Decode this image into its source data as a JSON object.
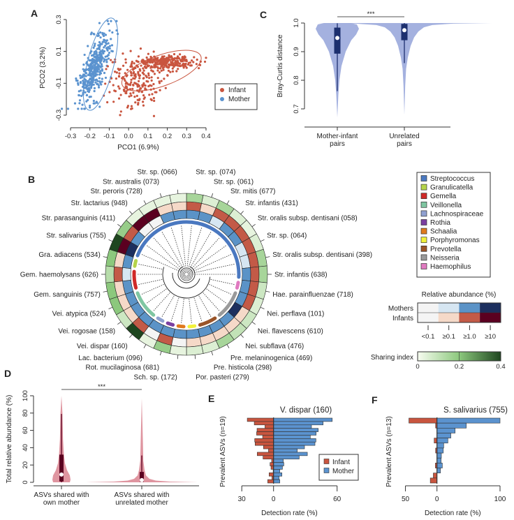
{
  "panels": {
    "A": "A",
    "B": "B",
    "C": "C",
    "D": "D",
    "E": "E",
    "F": "F"
  },
  "chart_data": [
    {
      "panel": "A",
      "type": "scatter",
      "xlabel": "PCO1 (6.9%)",
      "ylabel": "PCO2 (3.2%)",
      "xlim": [
        -0.3,
        0.4
      ],
      "ylim": [
        -0.3,
        0.3
      ],
      "xticks": [
        -0.3,
        -0.2,
        -0.1,
        0.0,
        0.1,
        0.2,
        0.3,
        0.4
      ],
      "xtick_labels": [
        "-0.3",
        "-0.2",
        "-0.1",
        "0.0",
        "0.1",
        "0.2",
        "0.3",
        "0.4"
      ],
      "yticks": [
        -0.3,
        -0.1,
        0.1,
        0.3
      ],
      "ytick_labels": [
        "-0.3",
        "-0.1",
        "0.1",
        "0.3"
      ],
      "legend_placement": "right",
      "series": [
        {
          "name": "Infant",
          "color": "#c9553f",
          "cluster_center": [
            0.17,
            -0.02
          ]
        },
        {
          "name": "Mother",
          "color": "#5b93cf",
          "cluster_center": [
            -0.15,
            0.01
          ]
        }
      ],
      "confidence_ellipses": true
    },
    {
      "panel": "B",
      "type": "heatmap",
      "layout": "circular",
      "rings": [
        "Mothers",
        "Infants",
        "Sharing index"
      ],
      "asvs": [
        {
          "label": "Str. sp. (074)",
          "genus": "Streptococcus",
          "mother": 2,
          "infant": 2,
          "sharing": 0.15
        },
        {
          "label": "Str. sp. (061)",
          "genus": "Streptococcus",
          "mother": 2,
          "infant": 1,
          "sharing": 0.05
        },
        {
          "label": "Str. mitis (677)",
          "genus": "Streptococcus",
          "mother": 1,
          "infant": 2,
          "sharing": 0.15
        },
        {
          "label": "Str. infantis (431)",
          "genus": "Streptococcus",
          "mother": 2,
          "infant": 2,
          "sharing": 0.05
        },
        {
          "label": "Str. oralis subsp. dentisani (058)",
          "genus": "Streptococcus",
          "mother": 2,
          "infant": 2,
          "sharing": 0.03
        },
        {
          "label": "Str. sp. (064)",
          "genus": "Streptococcus",
          "mother": 1,
          "infant": 2,
          "sharing": 0.05
        },
        {
          "label": "Str. oralis subsp. dentisani (398)",
          "genus": "Streptococcus",
          "mother": 1,
          "infant": 2,
          "sharing": 0.15
        },
        {
          "label": "Str. infantis (638)",
          "genus": "Streptococcus",
          "mother": 2,
          "infant": 2,
          "sharing": 0.15
        },
        {
          "label": "Hae. parainfluenzae (718)",
          "genus": "Haemophilus",
          "mother": 2,
          "infant": 2,
          "sharing": 0.08
        },
        {
          "label": "Nei. perflava (101)",
          "genus": "Neisseria",
          "mother": 2,
          "infant": 2,
          "sharing": 0.05
        },
        {
          "label": "Nei. flavescens (610)",
          "genus": "Neisseria",
          "mother": 3,
          "infant": 1,
          "sharing": 0.08
        },
        {
          "label": "Nei. subflava (476)",
          "genus": "Neisseria",
          "mother": 2,
          "infant": 1,
          "sharing": 0.1
        },
        {
          "label": "Pre. melaninogenica (469)",
          "genus": "Prevotella",
          "mother": 2,
          "infant": 1,
          "sharing": 0.15
        },
        {
          "label": "Pre. histicola (298)",
          "genus": "Prevotella",
          "mother": 2,
          "infant": 1,
          "sharing": 0.05
        },
        {
          "label": "Por. pasteri (279)",
          "genus": "Porphyromonas",
          "mother": 2,
          "infant": 1,
          "sharing": 0.05
        },
        {
          "label": "Sch. sp. (172)",
          "genus": "Schaalia",
          "mother": 2,
          "infant": 0,
          "sharing": 0.03
        },
        {
          "label": "Rot. mucilaginosa (681)",
          "genus": "Rothia",
          "mother": 2,
          "infant": 2,
          "sharing": 0.18
        },
        {
          "label": "Lac. bacterium (096)",
          "genus": "Lachnospiraceae",
          "mother": 2,
          "infant": 0,
          "sharing": 0.03
        },
        {
          "label": "Vei. dispar (160)",
          "genus": "Veillonella",
          "mother": 2,
          "infant": 2,
          "sharing": 0.4
        },
        {
          "label": "Vei. rogosae (158)",
          "genus": "Veillonella",
          "mother": 2,
          "infant": 1,
          "sharing": 0.08
        },
        {
          "label": "Vei. atypica (524)",
          "genus": "Veillonella",
          "mother": 2,
          "infant": 1,
          "sharing": 0.2
        },
        {
          "label": "Gem. sanguinis (757)",
          "genus": "Gemella",
          "mother": 2,
          "infant": 1,
          "sharing": 0.2
        },
        {
          "label": "Gem. haemolysans (626)",
          "genus": "Gemella",
          "mother": 1,
          "infant": 2,
          "sharing": 0.12
        },
        {
          "label": "Gra. adiacens (534)",
          "genus": "Granulicatella",
          "mother": 2,
          "infant": 1,
          "sharing": 0.2
        },
        {
          "label": "Str. salivarius (755)",
          "genus": "Streptococcus",
          "mother": 3,
          "infant": 3,
          "sharing": 0.4
        },
        {
          "label": "Str. parasanguinis (411)",
          "genus": "Streptococcus",
          "mother": 2,
          "infant": 2,
          "sharing": 0.18
        },
        {
          "label": "Str. lactarius (948)",
          "genus": "Streptococcus",
          "mother": 0,
          "infant": 3,
          "sharing": 0.03
        },
        {
          "label": "Str. peroris (728)",
          "genus": "Streptococcus",
          "mother": 0,
          "infant": 3,
          "sharing": 0.03
        },
        {
          "label": "Str. australis (073)",
          "genus": "Streptococcus",
          "mother": 2,
          "infant": 1,
          "sharing": 0.03
        },
        {
          "label": "Str. sp. (066)",
          "genus": "Streptococcus",
          "mother": 2,
          "infant": 1,
          "sharing": 0.03
        }
      ],
      "genus_legend": [
        {
          "name": "Streptococcus",
          "color": "#4a78c0"
        },
        {
          "name": "Granulicatella",
          "color": "#b5d44a"
        },
        {
          "name": "Gemella",
          "color": "#d02a28"
        },
        {
          "name": "Veillonella",
          "color": "#7fc6a2"
        },
        {
          "name": "Lachnospiraceae",
          "color": "#8fa0d0"
        },
        {
          "name": "Rothia",
          "color": "#7b3fa0"
        },
        {
          "name": "Schaalia",
          "color": "#e07a1e"
        },
        {
          "name": "Porphyromonas",
          "color": "#f2f23a"
        },
        {
          "name": "Prevotella",
          "color": "#9a5428"
        },
        {
          "name": "Neisseria",
          "color": "#9a9a9a"
        },
        {
          "name": "Haemophilus",
          "color": "#e07ac0"
        }
      ],
      "abundance_title": "Relative abundance (%)",
      "abundance_rows": [
        "Mothers",
        "Infants"
      ],
      "abundance_bins": [
        "<0.1",
        "≥0.1",
        "≥1.0",
        "≥10"
      ],
      "mother_colors": [
        "#f4f4f4",
        "#d6e6f2",
        "#5b93c7",
        "#1c2f5e"
      ],
      "infant_colors": [
        "#f4f4f4",
        "#f5d9c8",
        "#c35a47",
        "#5b0020"
      ],
      "sharing_title": "Sharing index",
      "sharing_range": [
        0,
        0.4
      ],
      "sharing_ticks": [
        "0",
        "0.2",
        "0.4"
      ],
      "sharing_colors": [
        "#f7fcf0",
        "#8cc87d",
        "#1e461f"
      ]
    },
    {
      "panel": "C",
      "type": "violin",
      "ylabel": "Bray-Curtis distance",
      "ylim": [
        0.7,
        1.0
      ],
      "yticks": [
        0.7,
        0.8,
        0.9,
        1.0
      ],
      "ytick_labels": [
        "0.7",
        "0.8",
        "0.9",
        "1.0"
      ],
      "color": "#9aa8dc",
      "box_color": "#1c2f6e",
      "significance": "***",
      "categories": [
        {
          "line1": "Mother-infant",
          "line2": "pairs",
          "median": 0.948,
          "q1": 0.893,
          "q3": 0.984,
          "whisker_low": 0.762,
          "whisker_high": 1.0,
          "min": 0.67
        },
        {
          "line1": "Unrelated",
          "line2": "pairs",
          "median": 0.975,
          "q1": 0.94,
          "q3": 0.997,
          "whisker_low": 0.86,
          "whisker_high": 1.0,
          "min": 0.68
        }
      ]
    },
    {
      "panel": "D",
      "type": "violin",
      "ylabel": "Total relative abundance (%)",
      "ylim": [
        0,
        100
      ],
      "yticks": [
        0,
        20,
        40,
        60,
        80,
        100
      ],
      "ytick_labels": [
        "0",
        "20",
        "40",
        "60",
        "80",
        "100"
      ],
      "color": "#dc8a96",
      "box_color": "#5b0020",
      "significance": "***",
      "categories": [
        {
          "line1": "ASVs shared with",
          "line2": "own mother",
          "median": 9,
          "q1": 1,
          "q3": 32,
          "whisker_low": 0,
          "whisker_high": 79,
          "max": 100
        },
        {
          "line1": "ASVs shared with",
          "line2": "unrelated mother",
          "median": 2.5,
          "q1": 0.5,
          "q3": 12,
          "whisker_low": 0,
          "whisker_high": 31,
          "max": 97
        }
      ]
    },
    {
      "panel": "E",
      "type": "bar",
      "orientation": "horizontal-diverging",
      "title": "V. dispar (160)",
      "ylabel": "Prevalent ASVs (n=19)",
      "xlabel": "Detection rate (%)",
      "xticks": [
        -30,
        0,
        60
      ],
      "xtick_labels": [
        "30",
        "0",
        "60"
      ],
      "legend_placement": "bottom-right",
      "series": [
        {
          "name": "Infant",
          "color": "#c9553f",
          "values": [
            24.8,
            18.2,
            8.1,
            15.6,
            16.0,
            10.3,
            17.8,
            17.4,
            9.5,
            4.8,
            15.4,
            9.9,
            1.8,
            3.3,
            2.4,
            0.4,
            4.2,
            1.5,
            5.5
          ]
        },
        {
          "name": "Mother",
          "color": "#5b93cf",
          "values": [
            55.4,
            46.8,
            35.8,
            42.2,
            40.2,
            34.7,
            40.0,
            39.1,
            29.2,
            22.4,
            31.9,
            24.2,
            9.2,
            9.7,
            8.4,
            5.9,
            7.9,
            5.3,
            5.9
          ]
        }
      ]
    },
    {
      "panel": "F",
      "type": "bar",
      "orientation": "horizontal-diverging",
      "title": "S. salivarius (755)",
      "ylabel": "Prevalent ASVs (n=13)",
      "xlabel": "Detection rate (%)",
      "xticks": [
        -50,
        0,
        100
      ],
      "xtick_labels": [
        "50",
        "0",
        "100"
      ],
      "series": [
        {
          "name": "Infant",
          "color": "#c9553f",
          "values": [
            44.5,
            2.2,
            0,
            0,
            4.4,
            0,
            2.2,
            0,
            0,
            2.6,
            0,
            5.8,
            10.6
          ]
        },
        {
          "name": "Mother",
          "color": "#5b93cf",
          "values": [
            100,
            46.5,
            28.8,
            22.0,
            17.3,
            10.7,
            10.0,
            7.0,
            6.6,
            8.5,
            5.5,
            0,
            0
          ]
        }
      ]
    }
  ]
}
